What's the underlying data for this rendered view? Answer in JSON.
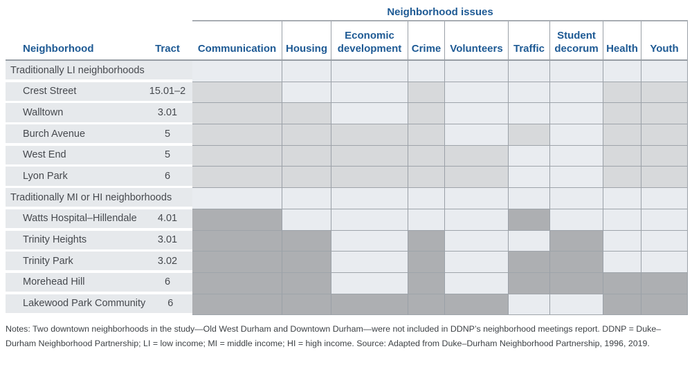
{
  "table": {
    "issues_title": "Neighborhood issues",
    "neighborhood_header": "Neighborhood",
    "tract_header": "Tract",
    "issue_columns": [
      "Communication",
      "Housing",
      "Economic development",
      "Crime",
      "Volunteers",
      "Traffic",
      "Student decorum",
      "Health",
      "Youth"
    ],
    "colors": {
      "header_blue": "#1e5a94",
      "unshaded_cell": "#e9ecf0",
      "left_band": "#e6e9ec",
      "li_shade": "#d7d9db",
      "mihi_shade": "#adafb2",
      "grid_line": "#9aa0a7"
    },
    "sections": [
      {
        "label": "Traditionally LI neighborhoods",
        "shade": "#d7d9db",
        "rows": [
          {
            "name": "Crest Street",
            "tract": "15.01–2",
            "issues": [
              1,
              0,
              0,
              1,
              0,
              0,
              0,
              1,
              1
            ]
          },
          {
            "name": "Walltown",
            "tract": "3.01",
            "issues": [
              1,
              1,
              0,
              1,
              0,
              0,
              0,
              1,
              1
            ]
          },
          {
            "name": "Burch Avenue",
            "tract": "5",
            "issues": [
              1,
              1,
              1,
              1,
              0,
              1,
              0,
              1,
              1
            ]
          },
          {
            "name": "West End",
            "tract": "5",
            "issues": [
              1,
              1,
              1,
              1,
              1,
              0,
              0,
              1,
              1
            ]
          },
          {
            "name": "Lyon Park",
            "tract": "6",
            "issues": [
              1,
              1,
              1,
              1,
              1,
              0,
              0,
              1,
              1
            ]
          }
        ]
      },
      {
        "label": "Traditionally MI or HI neighborhoods",
        "shade": "#adafb2",
        "rows": [
          {
            "name": "Watts Hospital–Hillendale",
            "tract": "4.01",
            "issues": [
              1,
              0,
              0,
              0,
              0,
              1,
              0,
              0,
              0
            ]
          },
          {
            "name": "Trinity Heights",
            "tract": "3.01",
            "issues": [
              1,
              1,
              0,
              1,
              0,
              0,
              1,
              0,
              0
            ]
          },
          {
            "name": "Trinity Park",
            "tract": "3.02",
            "issues": [
              1,
              1,
              0,
              1,
              0,
              1,
              1,
              0,
              0
            ]
          },
          {
            "name": "Morehead Hill",
            "tract": "6",
            "issues": [
              1,
              1,
              0,
              1,
              0,
              1,
              1,
              1,
              1
            ]
          },
          {
            "name": "Lakewood Park Community",
            "tract": "6",
            "issues": [
              1,
              1,
              1,
              1,
              1,
              0,
              0,
              1,
              1
            ]
          }
        ]
      }
    ]
  },
  "notes": "Notes: Two downtown neighborhoods in the study—Old West Durham and Downtown Durham—were not included in DDNP’s neighborhood meetings report. DDNP = Duke–Durham Neighborhood Partnership; LI = low income; MI = middle income; HI = high income. Source: Adapted from Duke–Durham Neighborhood Partnership, 1996, 2019."
}
